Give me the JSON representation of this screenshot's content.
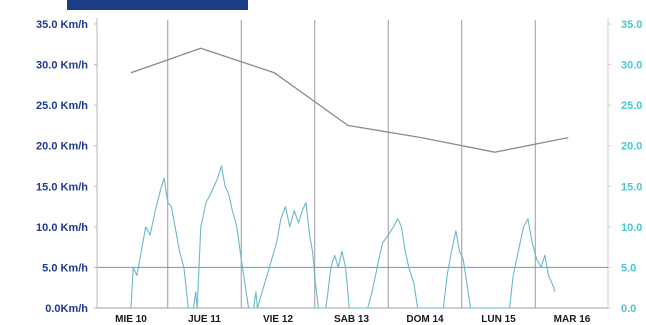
{
  "chart_data": {
    "type": "line",
    "title": "",
    "xlabel": "",
    "ylabel": "",
    "unit": "Km/h",
    "header_bar_color": "#1c3c86",
    "left_axis_color": "#1f3a93",
    "right_axis_color": "#49c7d2",
    "grid": true,
    "ylim": [
      0,
      35
    ],
    "y_ticks_left": [
      "35.0 Km/h",
      "30.0 Km/h",
      "25.0 Km/h",
      "20.0 Km/h",
      "15.0 Km/h",
      "10.0 Km/h",
      "5.0 Km/h",
      "0.0Km/h"
    ],
    "y_ticks_right": [
      "35.0",
      "30.0",
      "25.0",
      "20.0",
      "15.0",
      "10.0",
      "5.0",
      "0.0"
    ],
    "categories": [
      "MIE 10",
      "JUE 11",
      "VIE 12",
      "SAB 13",
      "DOM 14",
      "LUN 15",
      "MAR 16"
    ],
    "reference_line": {
      "y": 5,
      "color": "#5aa3b3"
    },
    "series": [
      {
        "color": "#8c8c8c",
        "points": [
          [
            0.0,
            29.0
          ],
          [
            0.95,
            32.0
          ],
          [
            1.95,
            29.0
          ],
          [
            2.95,
            22.5
          ],
          [
            3.95,
            21.0
          ],
          [
            4.95,
            19.2
          ],
          [
            5.95,
            21.0
          ]
        ]
      },
      {
        "color": "#6bb8cc",
        "points": [
          [
            0.0,
            0.0
          ],
          [
            0.03,
            5.0
          ],
          [
            0.08,
            4.0
          ],
          [
            0.14,
            7.0
          ],
          [
            0.2,
            10.0
          ],
          [
            0.26,
            9.0
          ],
          [
            0.33,
            12.0
          ],
          [
            0.4,
            14.5
          ],
          [
            0.45,
            16.0
          ],
          [
            0.5,
            13.0
          ],
          [
            0.55,
            12.5
          ],
          [
            0.6,
            10.0
          ],
          [
            0.66,
            7.0
          ],
          [
            0.72,
            5.0
          ],
          [
            0.78,
            0.0
          ],
          [
            0.85,
            0.0
          ],
          [
            0.88,
            2.0
          ],
          [
            0.9,
            0.0
          ],
          [
            0.95,
            10.0
          ],
          [
            1.02,
            13.0
          ],
          [
            1.08,
            14.0
          ],
          [
            1.13,
            15.0
          ],
          [
            1.18,
            16.0
          ],
          [
            1.23,
            17.5
          ],
          [
            1.28,
            15.0
          ],
          [
            1.33,
            14.0
          ],
          [
            1.38,
            12.0
          ],
          [
            1.44,
            10.0
          ],
          [
            1.5,
            6.0
          ],
          [
            1.55,
            3.0
          ],
          [
            1.6,
            0.0
          ],
          [
            1.67,
            0.0
          ],
          [
            1.7,
            2.0
          ],
          [
            1.72,
            0.0
          ],
          [
            1.98,
            8.0
          ],
          [
            2.04,
            11.0
          ],
          [
            2.1,
            12.5
          ],
          [
            2.16,
            10.0
          ],
          [
            2.22,
            12.0
          ],
          [
            2.28,
            10.5
          ],
          [
            2.33,
            12.0
          ],
          [
            2.38,
            13.0
          ],
          [
            2.43,
            9.0
          ],
          [
            2.47,
            7.0
          ],
          [
            2.51,
            3.0
          ],
          [
            2.55,
            0.0
          ],
          [
            2.65,
            0.0
          ],
          [
            2.68,
            2.0
          ],
          [
            2.72,
            5.0
          ],
          [
            2.77,
            6.5
          ],
          [
            2.82,
            5.0
          ],
          [
            2.87,
            7.0
          ],
          [
            2.92,
            5.0
          ],
          [
            2.97,
            0.0
          ],
          [
            3.22,
            0.0
          ],
          [
            3.28,
            2.0
          ],
          [
            3.35,
            5.0
          ],
          [
            3.42,
            8.0
          ],
          [
            3.5,
            9.0
          ],
          [
            3.57,
            10.0
          ],
          [
            3.63,
            11.0
          ],
          [
            3.68,
            10.0
          ],
          [
            3.73,
            7.0
          ],
          [
            3.78,
            5.0
          ],
          [
            3.85,
            3.0
          ],
          [
            3.9,
            0.0
          ],
          [
            4.25,
            0.0
          ],
          [
            4.3,
            4.0
          ],
          [
            4.36,
            7.0
          ],
          [
            4.42,
            9.5
          ],
          [
            4.47,
            7.0
          ],
          [
            4.52,
            6.0
          ],
          [
            4.57,
            3.0
          ],
          [
            4.62,
            0.0
          ],
          [
            5.15,
            0.0
          ],
          [
            5.2,
            4.0
          ],
          [
            5.27,
            7.0
          ],
          [
            5.34,
            10.0
          ],
          [
            5.4,
            11.0
          ],
          [
            5.46,
            8.0
          ],
          [
            5.52,
            6.0
          ],
          [
            5.58,
            5.0
          ],
          [
            5.63,
            6.5
          ],
          [
            5.68,
            4.0
          ],
          [
            5.73,
            3.0
          ],
          [
            5.77,
            2.0
          ]
        ]
      }
    ]
  }
}
